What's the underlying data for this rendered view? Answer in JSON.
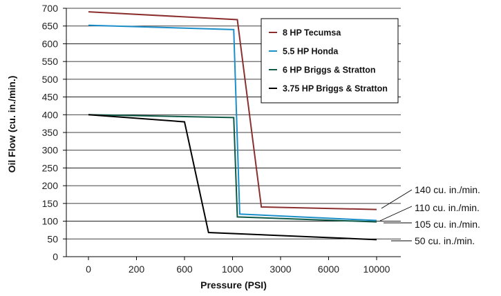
{
  "chart_data": {
    "type": "line",
    "title": "",
    "xlabel": "Pressure (PSI)",
    "ylabel": "Oil Flow (cu. in./min.)",
    "x_categories": [
      "0",
      "200",
      "600",
      "1000",
      "3000",
      "6000",
      "10000"
    ],
    "ylim": [
      0,
      700
    ],
    "yticks": [
      0,
      50,
      100,
      150,
      200,
      250,
      300,
      350,
      400,
      450,
      500,
      550,
      600,
      650,
      700
    ],
    "grid": "horizontal",
    "legend_position": "top-right",
    "series": [
      {
        "name": "8 HP Tecumsa",
        "color": "#8b2e2e",
        "points": [
          {
            "x": "0",
            "y": 690
          },
          {
            "x": "≈1200",
            "y": 668
          },
          {
            "x": "≈2200",
            "y": 140
          },
          {
            "x": "10000",
            "y": 133
          }
        ]
      },
      {
        "name": "5.5 HP Honda",
        "color": "#1b8fc9",
        "points": [
          {
            "x": "0",
            "y": 652
          },
          {
            "x": "≈1050",
            "y": 640
          },
          {
            "x": "≈1300",
            "y": 120
          },
          {
            "x": "10000",
            "y": 102
          }
        ]
      },
      {
        "name": "6 HP Briggs & Stratton",
        "color": "#0f5a46",
        "points": [
          {
            "x": "0",
            "y": 400
          },
          {
            "x": "≈1050",
            "y": 392
          },
          {
            "x": "≈1200",
            "y": 112
          },
          {
            "x": "10000",
            "y": 98
          }
        ]
      },
      {
        "name": "3.75 HP Briggs & Stratton",
        "color": "#000000",
        "points": [
          {
            "x": "0",
            "y": 400
          },
          {
            "x": "600",
            "y": 380
          },
          {
            "x": "≈800",
            "y": 68
          },
          {
            "x": "10000",
            "y": 48
          }
        ]
      }
    ],
    "annotations": [
      {
        "label": "140 cu. in./min.",
        "series": "8 HP Tecumsa"
      },
      {
        "label": "110 cu. in./min.",
        "series": "5.5 HP Honda"
      },
      {
        "label": "105 cu. in./min.",
        "series": "6 HP Briggs & Stratton"
      },
      {
        "label": "50 cu. in./min.",
        "series": "3.75 HP Briggs & Stratton"
      }
    ]
  }
}
